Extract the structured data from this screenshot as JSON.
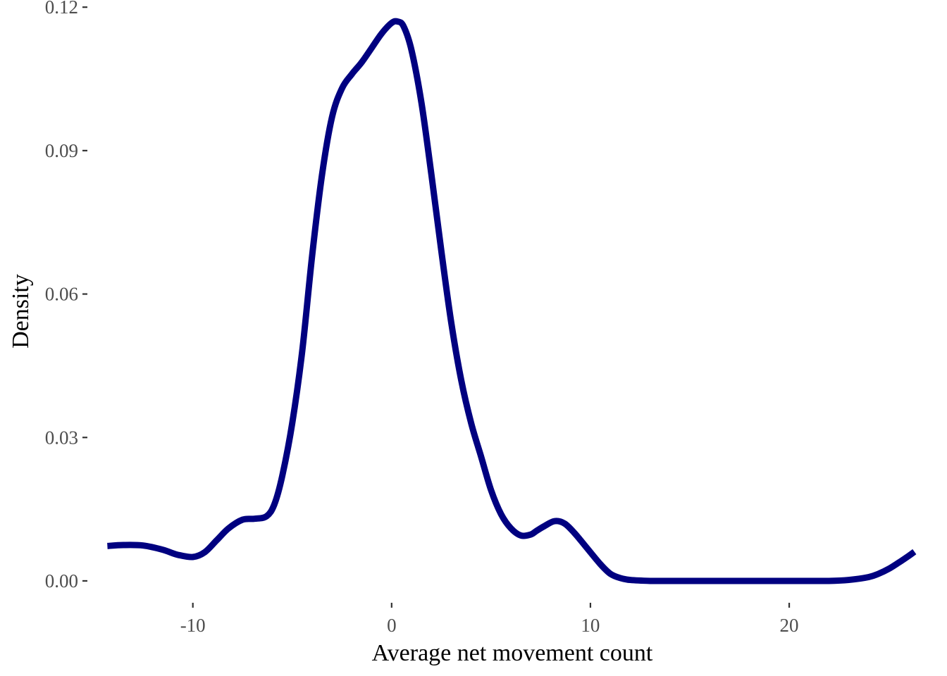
{
  "chart_data": {
    "type": "line",
    "title": "",
    "xlabel": "Average net movement count",
    "ylabel": "Density",
    "xlim": [
      -15.2,
      27.3
    ],
    "ylim": [
      -0.0059,
      0.1215
    ],
    "x_ticks": [
      -10,
      0,
      10,
      20
    ],
    "x_tick_labels": [
      "-10",
      "0",
      "10",
      "20"
    ],
    "y_ticks": [
      0.0,
      0.03,
      0.06,
      0.09,
      0.12
    ],
    "y_tick_labels": [
      "0.00",
      "0.03",
      "0.06",
      "0.09",
      "0.12"
    ],
    "grid": false,
    "legend": "none",
    "line_color": "#000080",
    "series": [
      {
        "x": [
          -14.3,
          -13.5,
          -12.5,
          -11.5,
          -10.8,
          -10.0,
          -9.4,
          -8.8,
          -8.2,
          -7.5,
          -6.9,
          -6.3,
          -5.9,
          -5.5,
          -5.0,
          -4.5,
          -4.0,
          -3.5,
          -3.0,
          -2.5,
          -2.0,
          -1.5,
          -1.0,
          -0.5,
          0.0,
          0.3,
          0.6,
          1.0,
          1.5,
          2.0,
          2.5,
          3.0,
          3.5,
          4.0,
          4.5,
          5.0,
          5.5,
          6.0,
          6.5,
          7.0,
          7.3,
          7.7,
          8.2,
          8.7,
          9.2,
          9.8,
          10.5,
          11.0,
          11.5,
          12.0,
          13.0,
          14.0,
          16.0,
          18.0,
          20.0,
          22.0,
          23.0,
          24.0,
          24.5,
          25.0,
          25.5,
          26.0,
          26.3
        ],
        "y": [
          0.0073,
          0.0075,
          0.0074,
          0.0065,
          0.0055,
          0.005,
          0.006,
          0.0085,
          0.011,
          0.0128,
          0.013,
          0.0135,
          0.016,
          0.022,
          0.033,
          0.048,
          0.068,
          0.085,
          0.097,
          0.103,
          0.106,
          0.1085,
          0.1115,
          0.1145,
          0.1167,
          0.117,
          0.116,
          0.111,
          0.1,
          0.085,
          0.069,
          0.054,
          0.042,
          0.033,
          0.026,
          0.019,
          0.014,
          0.011,
          0.0095,
          0.0097,
          0.0105,
          0.0115,
          0.0125,
          0.012,
          0.01,
          0.007,
          0.0035,
          0.0015,
          0.0006,
          0.0002,
          0.0,
          0.0,
          0.0,
          0.0,
          0.0,
          0.0,
          0.0002,
          0.0008,
          0.0015,
          0.0025,
          0.0038,
          0.0052,
          0.0061
        ]
      }
    ]
  }
}
